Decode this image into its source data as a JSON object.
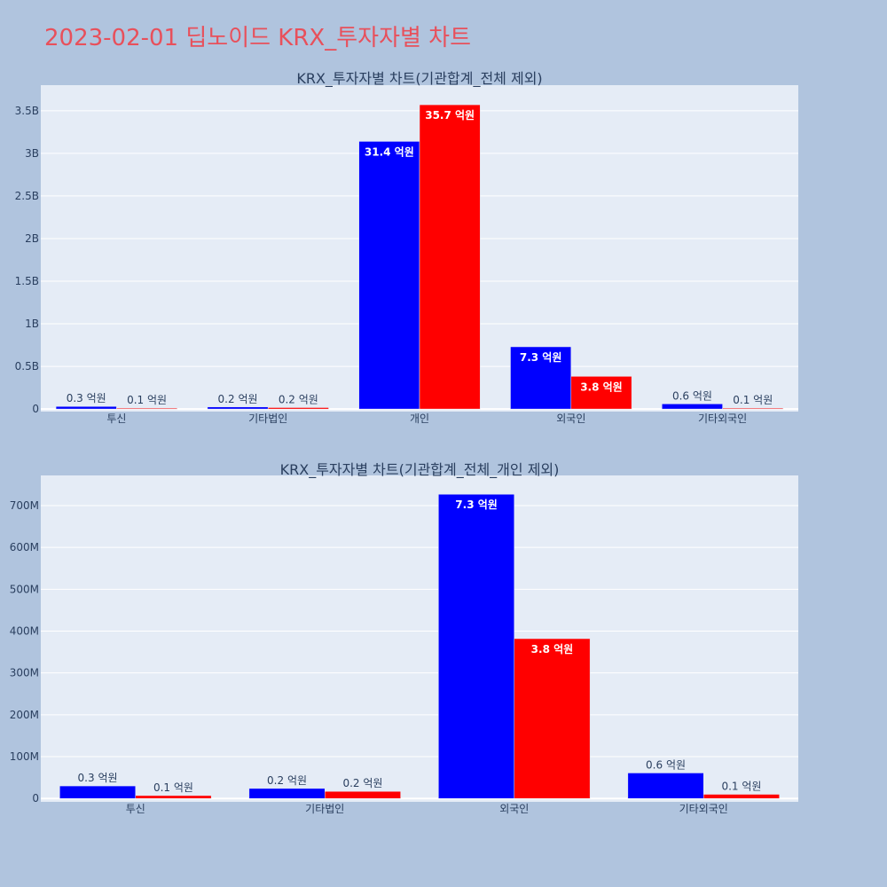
{
  "page": {
    "title": "2023-02-01 딥노이드 KRX_투자자별 차트"
  },
  "colors": {
    "buy": "#0000ff",
    "sell": "#ff0000",
    "plot_bg": "#e5ecf6",
    "page_bg": "#b0c4de",
    "title": "#e8505b"
  },
  "chart_data": [
    {
      "type": "bar",
      "title": "KRX_투자자별 차트(기관합계_전체 제외)",
      "categories": [
        "투신",
        "기타법인",
        "개인",
        "외국인",
        "기타외국인"
      ],
      "series": [
        {
          "values": [
            30000000,
            24000000,
            3140000000,
            730000000,
            60000000
          ],
          "labels": [
            "0.3 억원",
            "0.2 억원",
            "31.4 억원",
            "7.3 억원",
            "0.6 억원"
          ]
        },
        {
          "values": [
            8000000,
            17000000,
            3570000000,
            383000000,
            10000000
          ],
          "labels": [
            "0.1 억원",
            "0.2 억원",
            "35.7 억원",
            "3.8 억원",
            "0.1 억원"
          ]
        }
      ],
      "ylim": [
        -30000000,
        3800000000
      ],
      "yticks": [
        0,
        500000000,
        1000000000,
        1500000000,
        2000000000,
        2500000000,
        3000000000,
        3500000000
      ],
      "yticklabels": [
        "0",
        "0.5B",
        "1B",
        "1.5B",
        "2B",
        "2.5B",
        "3B",
        "3.5B"
      ],
      "grid": true
    },
    {
      "type": "bar",
      "title": "KRX_투자자별 차트(기관합계_전체_개인 제외)",
      "categories": [
        "투신",
        "기타법인",
        "외국인",
        "기타외국인"
      ],
      "series": [
        {
          "values": [
            30000000,
            24000000,
            727000000,
            61000000
          ],
          "labels": [
            "0.3 억원",
            "0.2 억원",
            "7.3 억원",
            "0.6 억원"
          ]
        },
        {
          "values": [
            7000000,
            17000000,
            382000000,
            10000000
          ],
          "labels": [
            "0.1 억원",
            "0.2 억원",
            "3.8 억원",
            "0.1 억원"
          ]
        }
      ],
      "ylim": [
        -8000000,
        772000000
      ],
      "yticks": [
        0,
        100000000,
        200000000,
        300000000,
        400000000,
        500000000,
        600000000,
        700000000
      ],
      "yticklabels": [
        "0",
        "100M",
        "200M",
        "300M",
        "400M",
        "500M",
        "600M",
        "700M"
      ],
      "grid": true
    }
  ]
}
